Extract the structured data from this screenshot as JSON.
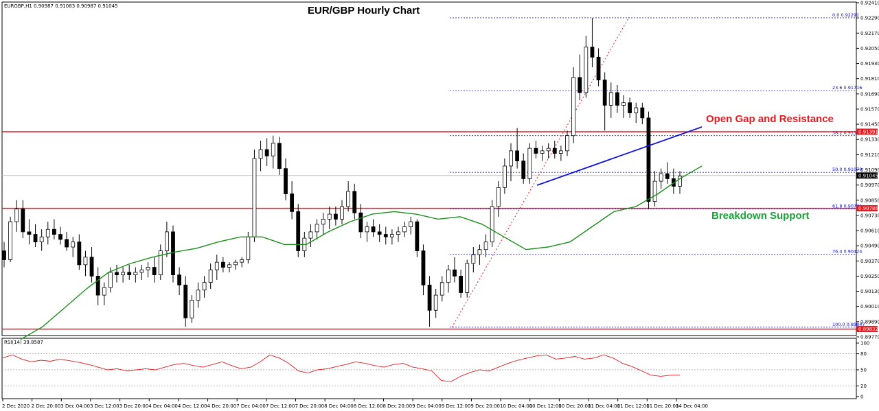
{
  "header": {
    "symbol_info": "EURGBP,H1  0.90987 0.91083 0.90987 0.91045",
    "title": "EUR/GBP Hourly Chart",
    "rsi_label": "RSI(14) 39.8587"
  },
  "annotations": {
    "resistance": "Open Gap and Resistance",
    "support": "Breakdown Support"
  },
  "colors": {
    "candle": "#000000",
    "ma": "#1a8f1a",
    "rsi": "#e8191f",
    "horizontal_levels": "#e8191f",
    "trendline": "#1010e0",
    "fib": "#0000ff",
    "current_price": "#c0c0c0"
  },
  "chart_data": {
    "type": "candlestick",
    "title": "EUR/GBP Hourly Chart",
    "price_axis": {
      "min": 0.8977,
      "max": 0.9241,
      "ticks": [
        "0.92410",
        "0.92290",
        "0.92170",
        "0.92050",
        "0.91930",
        "0.91810",
        "0.91690",
        "0.91570",
        "0.91450",
        "0.91330",
        "0.91210",
        "0.91090",
        "0.90970",
        "0.90850",
        "0.90730",
        "0.90610",
        "0.90490",
        "0.90370",
        "0.90250",
        "0.90130",
        "0.90010",
        "0.89890",
        "0.89770"
      ]
    },
    "time_axis": [
      "2 Dec 2020",
      "2 Dec 20:00",
      "3 Dec 04:00",
      "3 Dec 12:00",
      "3 Dec 20:00",
      "4 Dec 04:00",
      "4 Dec 12:00",
      "4 Dec 20:00",
      "7 Dec 04:00",
      "7 Dec 12:00",
      "7 Dec 20:00",
      "8 Dec 04:00",
      "8 Dec 12:00",
      "8 Dec 20:00",
      "9 Dec 04:00",
      "9 Dec 12:00",
      "9 Dec 20:00",
      "10 Dec 04:00",
      "10 Dec 12:00",
      "10 Dec 20:00",
      "11 Dec 04:00",
      "11 Dec 12:00",
      "11 Dec 20:00",
      "14 Dec 04:00"
    ],
    "horizontal_levels": [
      {
        "price": 0.91391,
        "label": "0.91391"
      },
      {
        "price": 0.90786,
        "label": "0.90786"
      },
      {
        "price": 0.89832,
        "label": "0.89832"
      }
    ],
    "current_price": {
      "price": 0.91045,
      "label": "0.91045"
    },
    "fibonacci": [
      {
        "label": "0.0 0.92291",
        "price": 0.92291
      },
      {
        "label": "23.6 0.91716",
        "price": 0.91716
      },
      {
        "label": "38.2 0.91360",
        "price": 0.9136
      },
      {
        "label": "50.0 0.91070",
        "price": 0.9107
      },
      {
        "label": "61.8 0.90781",
        "price": 0.90781
      },
      {
        "label": "76.4 0.90424",
        "price": 0.90424
      },
      {
        "label": "100.0 0.89847",
        "price": 0.89847
      }
    ],
    "candles": [
      [
        0.9045,
        0.9052,
        0.9032,
        0.9038
      ],
      [
        0.9038,
        0.9072,
        0.9036,
        0.9068
      ],
      [
        0.9068,
        0.9085,
        0.906,
        0.9078
      ],
      [
        0.9078,
        0.9085,
        0.9055,
        0.906
      ],
      [
        0.906,
        0.907,
        0.905,
        0.9058
      ],
      [
        0.9058,
        0.9066,
        0.9048,
        0.9052
      ],
      [
        0.9052,
        0.9062,
        0.9045,
        0.9056
      ],
      [
        0.9056,
        0.9068,
        0.905,
        0.9062
      ],
      [
        0.9062,
        0.907,
        0.9054,
        0.9058
      ],
      [
        0.9058,
        0.9064,
        0.905,
        0.9054
      ],
      [
        0.9054,
        0.906,
        0.9045,
        0.9048
      ],
      [
        0.9048,
        0.9056,
        0.904,
        0.9052
      ],
      [
        0.9052,
        0.9058,
        0.903,
        0.9034
      ],
      [
        0.9034,
        0.9045,
        0.9025,
        0.904
      ],
      [
        0.904,
        0.9048,
        0.902,
        0.9025
      ],
      [
        0.9025,
        0.9032,
        0.9002,
        0.901
      ],
      [
        0.901,
        0.902,
        0.9002,
        0.9016
      ],
      [
        0.9016,
        0.9032,
        0.9012,
        0.9028
      ],
      [
        0.9028,
        0.9034,
        0.902,
        0.9026
      ],
      [
        0.9026,
        0.9032,
        0.902,
        0.9028
      ],
      [
        0.9028,
        0.9034,
        0.9022,
        0.9026
      ],
      [
        0.9026,
        0.9032,
        0.902,
        0.9028
      ],
      [
        0.9028,
        0.9034,
        0.9022,
        0.903
      ],
      [
        0.903,
        0.9036,
        0.9024,
        0.9032
      ],
      [
        0.9032,
        0.904,
        0.902,
        0.9026
      ],
      [
        0.9026,
        0.905,
        0.9022,
        0.9045
      ],
      [
        0.9045,
        0.9068,
        0.904,
        0.906
      ],
      [
        0.906,
        0.9065,
        0.902,
        0.9026
      ],
      [
        0.9026,
        0.9032,
        0.901,
        0.9018
      ],
      [
        0.9018,
        0.9025,
        0.8985,
        0.8992
      ],
      [
        0.8992,
        0.901,
        0.8988,
        0.9006
      ],
      [
        0.9006,
        0.902,
        0.9,
        0.9014
      ],
      [
        0.9014,
        0.9025,
        0.9008,
        0.902
      ],
      [
        0.902,
        0.9035,
        0.9015,
        0.903
      ],
      [
        0.903,
        0.9042,
        0.9022,
        0.9036
      ],
      [
        0.9036,
        0.904,
        0.9028,
        0.9032
      ],
      [
        0.9032,
        0.9036,
        0.9028,
        0.9034
      ],
      [
        0.9034,
        0.9038,
        0.903,
        0.9036
      ],
      [
        0.9036,
        0.904,
        0.9032,
        0.9038
      ],
      [
        0.9038,
        0.906,
        0.9035,
        0.9056
      ],
      [
        0.9056,
        0.9125,
        0.9052,
        0.9118
      ],
      [
        0.9118,
        0.9132,
        0.9108,
        0.9125
      ],
      [
        0.9125,
        0.9134,
        0.9112,
        0.912
      ],
      [
        0.912,
        0.9136,
        0.911,
        0.913
      ],
      [
        0.913,
        0.9135,
        0.9105,
        0.911
      ],
      [
        0.911,
        0.9118,
        0.9085,
        0.909
      ],
      [
        0.909,
        0.91,
        0.907,
        0.9076
      ],
      [
        0.9076,
        0.9082,
        0.904,
        0.9045
      ],
      [
        0.9045,
        0.906,
        0.904,
        0.9055
      ],
      [
        0.9055,
        0.9066,
        0.9048,
        0.906
      ],
      [
        0.906,
        0.907,
        0.9054,
        0.9066
      ],
      [
        0.9066,
        0.9075,
        0.9058,
        0.907
      ],
      [
        0.907,
        0.908,
        0.9062,
        0.9074
      ],
      [
        0.9074,
        0.908,
        0.9065,
        0.907
      ],
      [
        0.907,
        0.9085,
        0.9066,
        0.908
      ],
      [
        0.908,
        0.91,
        0.9076,
        0.9092
      ],
      [
        0.9092,
        0.9098,
        0.907,
        0.9075
      ],
      [
        0.9075,
        0.9082,
        0.9055,
        0.906
      ],
      [
        0.906,
        0.9068,
        0.9052,
        0.9064
      ],
      [
        0.9064,
        0.907,
        0.9056,
        0.906
      ],
      [
        0.906,
        0.9066,
        0.9052,
        0.9058
      ],
      [
        0.9058,
        0.9064,
        0.905,
        0.9056
      ],
      [
        0.9056,
        0.9062,
        0.905,
        0.9058
      ],
      [
        0.9058,
        0.9064,
        0.9052,
        0.906
      ],
      [
        0.906,
        0.9068,
        0.9056,
        0.9064
      ],
      [
        0.9064,
        0.9072,
        0.9058,
        0.9068
      ],
      [
        0.9068,
        0.907,
        0.904,
        0.9045
      ],
      [
        0.9045,
        0.905,
        0.901,
        0.9018
      ],
      [
        0.9018,
        0.9025,
        0.8985,
        0.8998
      ],
      [
        0.8998,
        0.9015,
        0.8992,
        0.901
      ],
      [
        0.901,
        0.9025,
        0.9005,
        0.902
      ],
      [
        0.902,
        0.9034,
        0.9012,
        0.903
      ],
      [
        0.903,
        0.904,
        0.902,
        0.9025
      ],
      [
        0.9025,
        0.903,
        0.9008,
        0.9012
      ],
      [
        0.9012,
        0.9038,
        0.9008,
        0.9035
      ],
      [
        0.9035,
        0.9048,
        0.9028,
        0.9042
      ],
      [
        0.9042,
        0.905,
        0.9034,
        0.9046
      ],
      [
        0.9046,
        0.9058,
        0.904,
        0.9052
      ],
      [
        0.9052,
        0.9085,
        0.9048,
        0.908
      ],
      [
        0.908,
        0.91,
        0.9072,
        0.9095
      ],
      [
        0.9095,
        0.9118,
        0.909,
        0.9112
      ],
      [
        0.9112,
        0.913,
        0.91,
        0.9124
      ],
      [
        0.9124,
        0.9142,
        0.911,
        0.9116
      ],
      [
        0.9116,
        0.9122,
        0.9098,
        0.9102
      ],
      [
        0.9102,
        0.913,
        0.9098,
        0.9126
      ],
      [
        0.9126,
        0.9132,
        0.9118,
        0.9122
      ],
      [
        0.9122,
        0.9128,
        0.9116,
        0.9124
      ],
      [
        0.9124,
        0.913,
        0.9118,
        0.9126
      ],
      [
        0.9126,
        0.9132,
        0.9118,
        0.9122
      ],
      [
        0.9122,
        0.9128,
        0.9116,
        0.9124
      ],
      [
        0.9124,
        0.914,
        0.912,
        0.9136
      ],
      [
        0.9136,
        0.919,
        0.913,
        0.9182
      ],
      [
        0.9182,
        0.92,
        0.9164,
        0.917
      ],
      [
        0.917,
        0.9215,
        0.9166,
        0.9206
      ],
      [
        0.9206,
        0.9229,
        0.919,
        0.9198
      ],
      [
        0.9198,
        0.9205,
        0.9175,
        0.918
      ],
      [
        0.918,
        0.9186,
        0.914,
        0.916
      ],
      [
        0.916,
        0.9178,
        0.915,
        0.917
      ],
      [
        0.917,
        0.9176,
        0.9154,
        0.916
      ],
      [
        0.916,
        0.9168,
        0.915,
        0.9162
      ],
      [
        0.9162,
        0.9166,
        0.915,
        0.9154
      ],
      [
        0.9154,
        0.9162,
        0.9146,
        0.9158
      ],
      [
        0.9158,
        0.9162,
        0.9145,
        0.915
      ],
      [
        0.915,
        0.9155,
        0.9078,
        0.9084
      ],
      [
        0.9084,
        0.9108,
        0.908,
        0.91
      ],
      [
        0.91,
        0.911,
        0.9094,
        0.9106
      ],
      [
        0.9106,
        0.9115,
        0.9098,
        0.9102
      ],
      [
        0.9102,
        0.911,
        0.909,
        0.9096
      ],
      [
        0.9096,
        0.9108,
        0.909,
        0.9104
      ]
    ],
    "ma_points": [
      0.8975,
      0.8985,
      0.9,
      0.9015,
      0.9028,
      0.9035,
      0.904,
      0.9044,
      0.9047,
      0.9052,
      0.9056,
      0.9056,
      0.905,
      0.905,
      0.906,
      0.9068,
      0.9074,
      0.9076,
      0.9074,
      0.907,
      0.9072,
      0.9066,
      0.9056,
      0.9046,
      0.9048,
      0.9052,
      0.9064,
      0.9076,
      0.908,
      0.909,
      0.9102,
      0.9112
    ],
    "rsi": {
      "label": "RSI(14) 39.8587",
      "min": 0,
      "max": 100,
      "ticks": [
        "100",
        "80",
        "50",
        "20",
        "0"
      ],
      "values": [
        72,
        78,
        70,
        65,
        68,
        66,
        70,
        67,
        64,
        60,
        55,
        50,
        52,
        48,
        50,
        52,
        50,
        55,
        60,
        62,
        58,
        55,
        60,
        65,
        58,
        52,
        55,
        65,
        78,
        72,
        62,
        48,
        44,
        50,
        52,
        56,
        60,
        65,
        62,
        58,
        55,
        60,
        62,
        55,
        52,
        48,
        30,
        28,
        38,
        45,
        50,
        48,
        55,
        62,
        68,
        72,
        76,
        78,
        70,
        72,
        75,
        70,
        72,
        78,
        72,
        62,
        56,
        48,
        40,
        38,
        40,
        40
      ]
    }
  }
}
